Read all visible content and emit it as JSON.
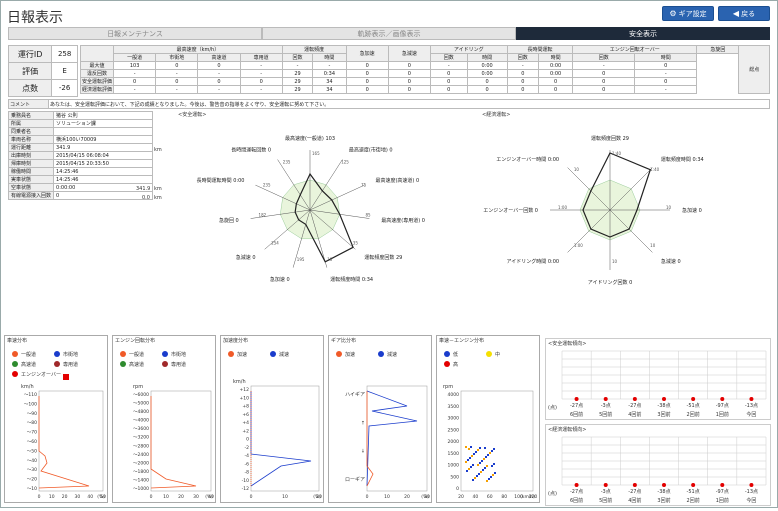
{
  "header": {
    "title": "日報表示",
    "gear_button": "ギア設定",
    "back_button": "戻る",
    "accent": "#2a63b0"
  },
  "tabs": [
    "日報メンテナンス",
    "軌跡表示／画像表示",
    "安全表示"
  ],
  "summary": {
    "labels": [
      "運行ID",
      "評価",
      "点数"
    ],
    "values": [
      "258",
      "E",
      "-26"
    ]
  },
  "grid": {
    "groups": [
      "最高速度（km/h）",
      "運転頻度",
      "急加速",
      "急減速",
      "アイドリング",
      "長時間運転",
      "エンジン回転オーバー",
      "急旋回",
      "総点"
    ],
    "subheaders": [
      "一般道",
      "市街地",
      "高速道",
      "専用道",
      "回数",
      "時間",
      "回数",
      "回数",
      "回数",
      "時間",
      "回数",
      "時間",
      "回数",
      "時間",
      "回数"
    ],
    "rows": [
      {
        "label": "最大値",
        "cells": [
          "103",
          "0",
          "0",
          "-",
          "-",
          "-",
          "0",
          "0",
          "-",
          "0:00",
          "-",
          "0:00",
          "-",
          "0",
          ""
        ]
      },
      {
        "label": "違反回数",
        "cells": [
          "-",
          "-",
          "-",
          "-",
          "29",
          "0:34",
          "0",
          "0",
          "0",
          "0:00",
          "0",
          "0:00",
          "0",
          "-",
          ""
        ]
      },
      {
        "label": "安全運転評価",
        "cells": [
          "0",
          "0",
          "0",
          "0",
          "29",
          "34",
          "0",
          "0",
          "0",
          "0",
          "0",
          "0",
          "0",
          "0",
          "-13"
        ]
      },
      {
        "label": "経済運転評価",
        "cells": [
          "-",
          "-",
          "-",
          "-",
          "29",
          "34",
          "0",
          "0",
          "0",
          "0",
          "0",
          "0",
          "0",
          "-",
          "-13"
        ]
      }
    ]
  },
  "comment": {
    "label": "コメント",
    "text": "あなたは、安全運転評価において、下記の成績となりました。今後は、警告音の指導をよく守り、安全運転に努めて下さい。"
  },
  "info": {
    "rows": [
      {
        "label": "乗務員名",
        "value": "猪谷 公則"
      },
      {
        "label": "所属",
        "value": "ソリューション課"
      },
      {
        "label": "同乗者名",
        "value": ""
      },
      {
        "label": "車両名称",
        "value": "横浜100い70009"
      },
      {
        "label": "運行距離",
        "value": "341.9"
      },
      {
        "label": "出庫時刻",
        "value": "2015/04/15 06:08:04"
      },
      {
        "label": "帰庫時刻",
        "value": "2015/04/15 20:33:50"
      },
      {
        "label": "稼働時間",
        "value": "14:25:46"
      },
      {
        "label": "実車状態",
        "value": "14:25:46"
      },
      {
        "label": "空車状態",
        "value": "0:00:00"
      },
      {
        "label": "有線電源接入回数",
        "value": "0"
      }
    ],
    "dist1": "341.9",
    "dist2": "0.0",
    "unit": "km"
  },
  "radar_safe": {
    "title": "<安全運転>",
    "labels": [
      "最高速度(一般道) 103",
      "最高速度(市街地) 0",
      "最高速度(高速道) 0",
      "最高速度(専用道) 0",
      "運転頻度回数 29",
      "運転頻度時間 0:34",
      "急加速 0",
      "急減速 0",
      "急旋回 0",
      "長時間運転時間 0:00",
      "長時間運転回数 0"
    ],
    "ring_labels": [
      "165",
      "125",
      "75",
      "85",
      "35",
      "10",
      "195",
      "254",
      "182",
      "235",
      "235",
      "10",
      "1:00",
      "1:00",
      "10",
      "10",
      "5:00"
    ]
  },
  "radar_eco": {
    "title": "<経済運転>",
    "labels": [
      "運転頻度回数 29",
      "運転頻度時間 0:34",
      "急加速 0",
      "急減速 0",
      "アイドリング回数 0",
      "アイドリング時間 0:00",
      "エンジンオーバー回数 0",
      "エンジンオーバー時間 0:00"
    ],
    "ring_labels": [
      "1:40",
      "1:40",
      "10",
      "10",
      "10",
      "1:00",
      "1:00",
      "10",
      "50"
    ]
  },
  "panels": {
    "speed": {
      "title": "車速分布",
      "legend": [
        "一般道",
        "市街地",
        "高速道",
        "専用道",
        "エンジンオーバー"
      ],
      "yunit": "km/h",
      "yticks": [
        "～110",
        "～100",
        "～90",
        "～80",
        "～70",
        "～60",
        "～50",
        "～40",
        "～30",
        "～20",
        "～10"
      ],
      "xticks": [
        "0",
        "10",
        "20",
        "30",
        "40",
        "50"
      ],
      "xunit": "(%)"
    },
    "rpm": {
      "title": "エンジン回転分布",
      "legend": [
        "一般道",
        "市街地",
        "高速道",
        "専用道"
      ],
      "yunit": "rpm",
      "yticks": [
        "～6000",
        "～5000",
        "～4800",
        "～4000",
        "～3600",
        "～3200",
        "～2800",
        "～2400",
        "～2000",
        "～1800",
        "～1400",
        "～1000"
      ],
      "xticks": [
        "0",
        "10",
        "20",
        "30",
        "40"
      ],
      "xunit": "(%)"
    },
    "accel": {
      "title": "加速度分布",
      "legend": [
        "加速",
        "減速"
      ],
      "yunit": "km/h",
      "yticks": [
        "+12",
        "+10",
        "+8",
        "+6",
        "+4",
        "+2",
        "0",
        "-2",
        "-4",
        "-6",
        "-8",
        "-10",
        "-12"
      ],
      "xticks": [
        "0",
        "10",
        "20"
      ],
      "xunit": "(%)"
    },
    "gear": {
      "title": "ギア比分布",
      "legend": [
        "加速",
        "減速"
      ],
      "ylabels": [
        "ハイギア",
        "↑",
        "↓",
        "ローギア"
      ],
      "xticks": [
        "0",
        "10",
        "20",
        "30"
      ],
      "xunit": "(%)"
    },
    "speed_rpm": {
      "title": "車速－エンジン分布",
      "legend": [
        "低",
        "中",
        "高"
      ],
      "yunit": "rpm",
      "yticks": [
        "4000",
        "3500",
        "3000",
        "2500",
        "2000",
        "1500",
        "1000",
        "500",
        "0"
      ],
      "xticks": [
        "20",
        "40",
        "60",
        "80",
        "100",
        "120"
      ],
      "xunit": "(km/h)"
    }
  },
  "trend_safe": {
    "title": "<安全運転傾向>",
    "unit": "(点)",
    "values": [
      "-27点",
      "-3点",
      "-27点",
      "-38点",
      "-51点",
      "-97点",
      "-13点"
    ],
    "labels": [
      "6回前",
      "5回前",
      "4回前",
      "3回前",
      "2回前",
      "1回前",
      "今回"
    ]
  },
  "trend_eco": {
    "title": "<経済運転傾向>",
    "unit": "(点)",
    "values": [
      "-27点",
      "-3点",
      "-27点",
      "-38点",
      "-51点",
      "-97点",
      "-13点"
    ],
    "labels": [
      "6回前",
      "5回前",
      "4回前",
      "3回前",
      "2回前",
      "1回前",
      "今回"
    ]
  }
}
